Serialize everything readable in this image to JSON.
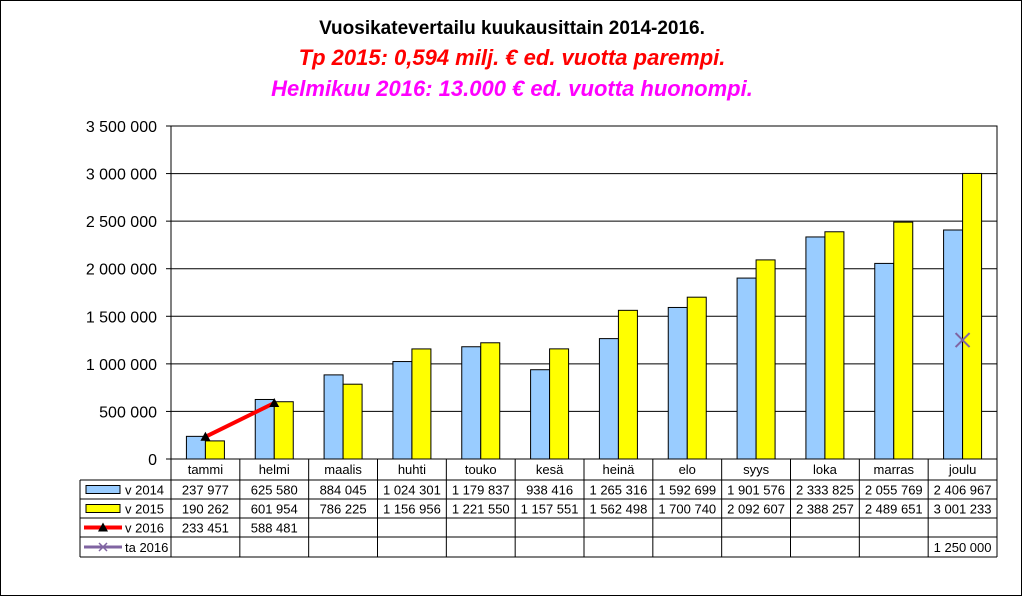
{
  "header": {
    "title": "Vuosikatevertailu kuukausittain 2014-2016.",
    "subtitle1": "Tp 2015: 0,594 milj. € ed. vuotta parempi.",
    "subtitle2": "Helmikuu 2016: 13.000 € ed. vuotta huonompi."
  },
  "colors": {
    "v2014": "#99ccff",
    "v2015": "#ffff00",
    "v2016_line": "#ff0000",
    "v2016_marker": "#000000",
    "ta2016": "#8064a2",
    "title2": "#ff0000",
    "title3": "#ff00ff"
  },
  "chart_data": {
    "type": "bar",
    "title": "Vuosikatevertailu kuukausittain 2014-2016.",
    "categories": [
      "tammi",
      "helmi",
      "maalis",
      "huhti",
      "touko",
      "kesä",
      "heinä",
      "elo",
      "syys",
      "loka",
      "marras",
      "joulu"
    ],
    "ylim": [
      0,
      3500000
    ],
    "y_ticks": [
      {
        "value": 0,
        "label": "0"
      },
      {
        "value": 500000,
        "label": "500 000"
      },
      {
        "value": 1000000,
        "label": "1 000 000"
      },
      {
        "value": 1500000,
        "label": "1 500 000"
      },
      {
        "value": 2000000,
        "label": "2 000 000"
      },
      {
        "value": 2500000,
        "label": "2 500 000"
      },
      {
        "value": 3000000,
        "label": "3 000 000"
      },
      {
        "value": 3500000,
        "label": "3 500 000"
      }
    ],
    "grid": "horizontal",
    "legend": "data table below chart",
    "series": [
      {
        "name": "v 2014",
        "kind": "bar",
        "color": "#99ccff",
        "values": [
          237977,
          625580,
          884045,
          1024301,
          1179837,
          938416,
          1265316,
          1592699,
          1901576,
          2333825,
          2055769,
          2406967
        ],
        "labels": [
          "237 977",
          "625 580",
          "884 045",
          "1 024 301",
          "1 179 837",
          "938 416",
          "1 265 316",
          "1 592 699",
          "1 901 576",
          "2 333 825",
          "2 055 769",
          "2 406 967"
        ]
      },
      {
        "name": "v 2015",
        "kind": "bar",
        "color": "#ffff00",
        "values": [
          190262,
          601954,
          786225,
          1156956,
          1221550,
          1157551,
          1562498,
          1700740,
          2092607,
          2388257,
          2489651,
          3001233
        ],
        "labels": [
          "190 262",
          "601 954",
          "786 225",
          "1 156 956",
          "1 221 550",
          "1 157 551",
          "1 562 498",
          "1 700 740",
          "2 092 607",
          "2 388 257",
          "2 489 651",
          "3 001 233"
        ]
      },
      {
        "name": "v 2016",
        "kind": "line",
        "color": "#ff0000",
        "values": [
          233451,
          588481,
          null,
          null,
          null,
          null,
          null,
          null,
          null,
          null,
          null,
          null
        ],
        "labels": [
          "233 451",
          "588 481",
          "",
          "",
          "",
          "",
          "",
          "",
          "",
          "",
          "",
          ""
        ]
      },
      {
        "name": "ta 2016",
        "kind": "marker",
        "color": "#8064a2",
        "values": [
          null,
          null,
          null,
          null,
          null,
          null,
          null,
          null,
          null,
          null,
          null,
          1250000
        ],
        "labels": [
          "",
          "",
          "",
          "",
          "",
          "",
          "",
          "",
          "",
          "",
          "",
          "1 250 000"
        ]
      }
    ]
  }
}
